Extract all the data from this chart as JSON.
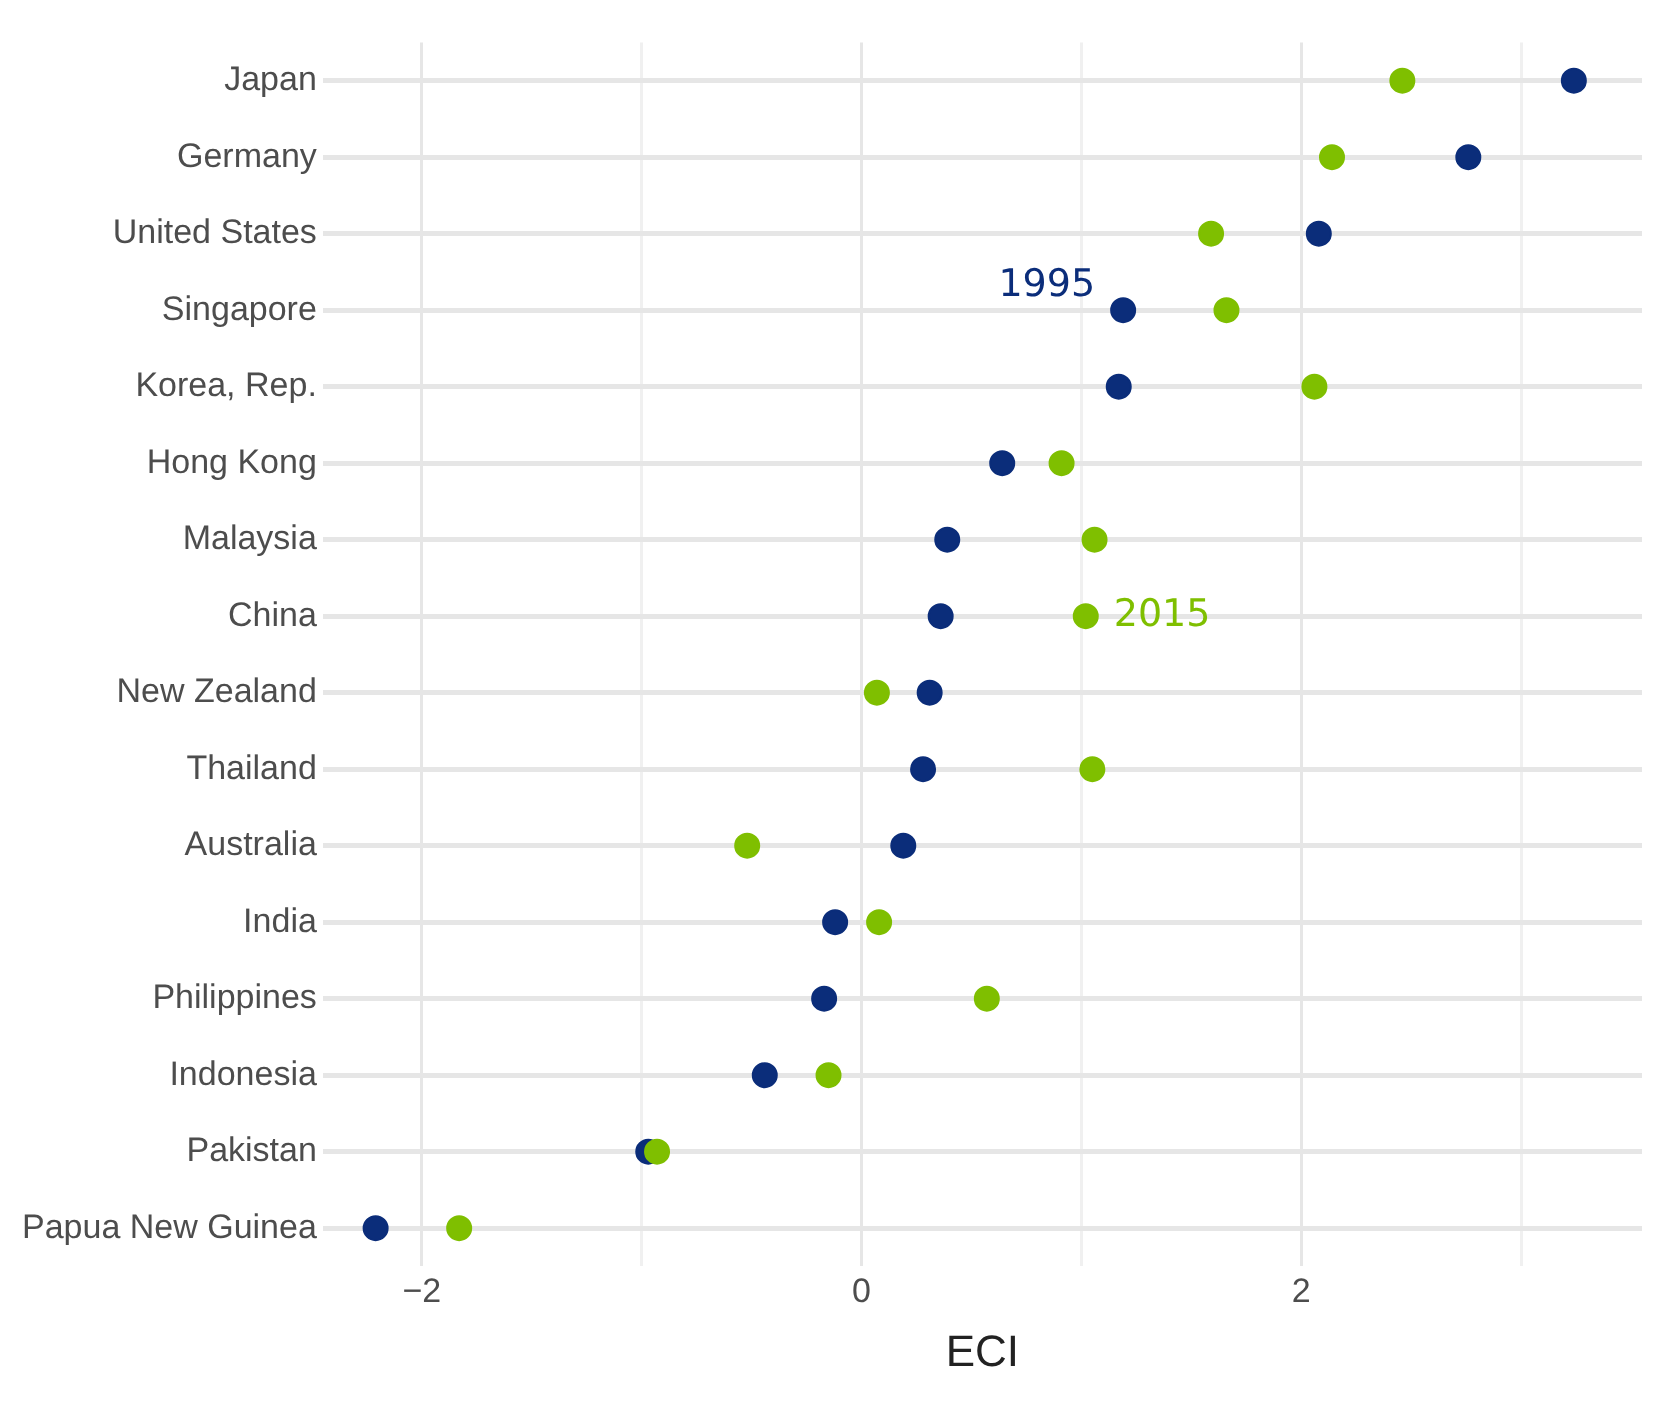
{
  "chart_data": {
    "type": "scatter",
    "orientation": "horizontal",
    "xlabel": "ECI",
    "categories": [
      "Japan",
      "Germany",
      "United States",
      "Singapore",
      "Korea, Rep.",
      "Hong Kong",
      "Malaysia",
      "China",
      "New Zealand",
      "Thailand",
      "Australia",
      "India",
      "Philippines",
      "Indonesia",
      "Pakistan",
      "Papua New Guinea"
    ],
    "series": [
      {
        "color": "#0b2d7a",
        "values": [
          3.24,
          2.76,
          2.08,
          1.19,
          1.17,
          0.64,
          0.39,
          0.36,
          0.31,
          0.28,
          0.19,
          -0.12,
          -0.17,
          -0.44,
          -0.97,
          -2.21
        ]
      },
      {
        "color": "#7fbf00",
        "values": [
          2.46,
          2.14,
          1.59,
          1.66,
          2.06,
          0.91,
          1.06,
          1.02,
          0.07,
          1.05,
          -0.52,
          0.08,
          0.57,
          -0.15,
          -0.93,
          -1.83
        ]
      }
    ],
    "annotations": [
      {
        "text": "1995",
        "x": 1.19,
        "y": "Singapore"
      },
      {
        "text": "2015",
        "x": 1.02,
        "y": "China"
      }
    ],
    "xlim": [
      -2.45,
      3.55
    ],
    "xticks": [
      -2,
      {
        "value": -1,
        "label": null
      },
      0,
      {
        "value": 1,
        "label": null
      },
      2,
      {
        "value": 3,
        "label": null
      }
    ],
    "grid": true,
    "legend": false,
    "marker": "circle"
  }
}
